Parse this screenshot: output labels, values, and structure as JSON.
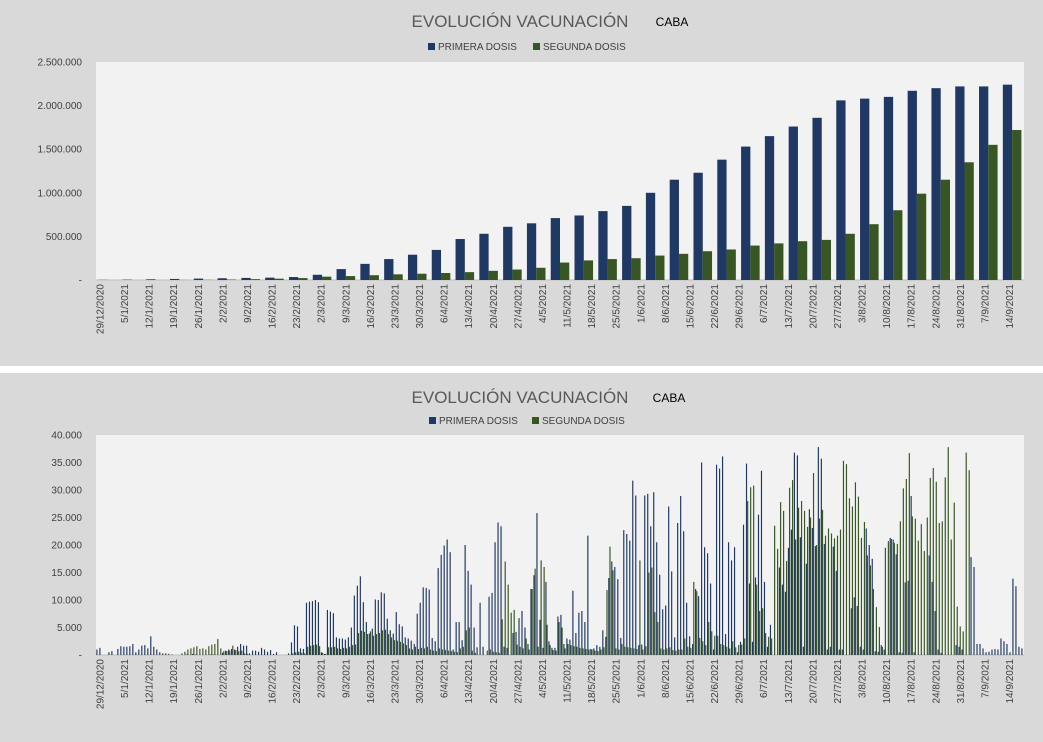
{
  "colors": {
    "first_dose": "#203864",
    "second_dose": "#375623",
    "plot_bg": "#f2f2f2",
    "panel_bg": "#d9d9d9",
    "text": "#404040"
  },
  "chart_data": [
    {
      "type": "bar",
      "title": "EVOLUCIÓN VACUNACIÓN",
      "subtitle": "CABA",
      "legend_position": "top",
      "grid": false,
      "ylim": [
        0,
        2500000
      ],
      "ytick_labels": [
        "-",
        "500.000",
        "1.000.000",
        "1.500.000",
        "2.000.000",
        "2.500.000"
      ],
      "ytick_values": [
        0,
        500000,
        1000000,
        1500000,
        2000000,
        2500000
      ],
      "x_tick_labels": [
        "29/12/2020",
        "5/1/2021",
        "12/1/2021",
        "19/1/2021",
        "26/1/2021",
        "2/2/2021",
        "9/2/2021",
        "16/2/2021",
        "23/2/2021",
        "2/3/2021",
        "9/3/2021",
        "16/3/2021",
        "23/3/2021",
        "30/3/2021",
        "6/4/2021",
        "13/4/2021",
        "20/4/2021",
        "27/4/2021",
        "4/5/2021",
        "11/5/2021",
        "18/5/2021",
        "25/5/2021",
        "1/6/2021",
        "8/6/2021",
        "15/6/2021",
        "22/6/2021",
        "29/6/2021",
        "6/7/2021",
        "13/7/2021",
        "20/7/2021",
        "27/7/2021",
        "3/8/2021",
        "10/8/2021",
        "17/8/2021",
        "24/8/2021",
        "31/8/2021",
        "7/9/2021",
        "14/9/2021"
      ],
      "series": [
        {
          "name": "PRIMERA DOSIS",
          "color": "#203864",
          "values": [
            2000,
            4000,
            8000,
            12000,
            16000,
            20000,
            24000,
            27000,
            34000,
            60000,
            125000,
            185000,
            240000,
            290000,
            345000,
            470000,
            530000,
            610000,
            650000,
            710000,
            740000,
            790000,
            850000,
            1000000,
            1150000,
            1230000,
            1380000,
            1530000,
            1650000,
            1760000,
            1860000,
            2060000,
            2080000,
            2100000,
            2170000,
            2200000,
            2220000,
            2220000,
            2240000
          ]
        },
        {
          "name": "SEGUNDA DOSIS",
          "color": "#375623",
          "values": [
            0,
            0,
            0,
            1000,
            2000,
            5000,
            10000,
            15000,
            22000,
            38000,
            45000,
            55000,
            65000,
            72000,
            80000,
            90000,
            105000,
            120000,
            140000,
            200000,
            225000,
            240000,
            250000,
            280000,
            300000,
            330000,
            350000,
            395000,
            420000,
            445000,
            460000,
            530000,
            640000,
            800000,
            990000,
            1150000,
            1350000,
            1550000,
            1720000
          ]
        }
      ]
    },
    {
      "type": "bar",
      "title": "EVOLUCIÓN VACUNACIÓN",
      "subtitle": "CABA",
      "legend_position": "top",
      "grid": false,
      "ylim": [
        0,
        40000
      ],
      "ytick_labels": [
        "-",
        "5.000",
        "10.000",
        "15.000",
        "20.000",
        "25.000",
        "30.000",
        "35.000",
        "40.000"
      ],
      "ytick_values": [
        0,
        5000,
        10000,
        15000,
        20000,
        25000,
        30000,
        35000,
        40000
      ],
      "x_tick_labels": [
        "29/12/2020",
        "5/1/2021",
        "12/1/2021",
        "19/1/2021",
        "26/1/2021",
        "2/2/2021",
        "9/2/2021",
        "16/2/2021",
        "23/2/2021",
        "2/3/2021",
        "9/3/2021",
        "16/3/2021",
        "23/3/2021",
        "30/3/2021",
        "6/4/2021",
        "13/4/2021",
        "20/4/2021",
        "27/4/2021",
        "4/5/2021",
        "11/5/2021",
        "18/5/2021",
        "25/5/2021",
        "1/6/2021",
        "8/6/2021",
        "15/6/2021",
        "22/6/2021",
        "29/6/2021",
        "6/7/2021",
        "13/7/2021",
        "20/7/2021",
        "27/7/2021",
        "3/8/2021",
        "10/8/2021",
        "17/8/2021",
        "24/8/2021",
        "31/8/2021",
        "7/9/2021",
        "14/9/2021"
      ],
      "series": [
        {
          "name": "PRIMERA DOSIS",
          "color": "#203864",
          "values": [
            1000,
            1300,
            0,
            0,
            500,
            700,
            0,
            1100,
            1600,
            1500,
            1500,
            1600,
            2000,
            500,
            1000,
            1700,
            1800,
            1200,
            3400,
            1500,
            1000,
            500,
            300,
            300,
            200,
            100,
            0,
            0,
            0,
            0,
            100,
            0,
            200,
            100,
            0,
            0,
            0,
            0,
            100,
            100,
            0,
            0,
            400,
            800,
            1000,
            1100,
            1000,
            1500,
            2000,
            1700,
            1700,
            300,
            800,
            800,
            600,
            1300,
            1000,
            600,
            900,
            200,
            500,
            0,
            0,
            0,
            300,
            2300,
            5400,
            5200,
            1200,
            1100,
            9500,
            9700,
            9800,
            10000,
            9600,
            500,
            200,
            8200,
            7900,
            7600,
            3200,
            3000,
            3000,
            2800,
            3200,
            5000,
            10800,
            12600,
            14300,
            9600,
            6000,
            3900,
            4800,
            10100,
            10000,
            11400,
            11200,
            6600,
            4500,
            3900,
            7800,
            5600,
            5200,
            3200,
            3000,
            2600,
            2000,
            7500,
            9500,
            12300,
            12200,
            11900,
            3100,
            2500,
            15800,
            18200,
            19900,
            21000,
            18700,
            1000,
            6000,
            6000,
            2700,
            20000,
            15300,
            12800,
            5000,
            1400,
            9500,
            1500,
            0,
            10600,
            11300,
            20500,
            24100,
            23400,
            1500,
            1300,
            0,
            4000,
            4200,
            6700,
            8000,
            5000,
            2000,
            12000,
            14500,
            25800,
            6400,
            1300,
            13300,
            2500,
            1300,
            1300,
            7000,
            7300,
            2000,
            3000,
            2800,
            11700,
            4000,
            7700,
            8000,
            6000,
            21700,
            1100,
            1200,
            1800,
            1500,
            4500,
            3300,
            14000,
            17000,
            16000,
            13800,
            3100,
            22700,
            22000,
            20800,
            31700,
            29000,
            1800,
            1900,
            29000,
            29300,
            23400,
            29600,
            20500,
            14600,
            8300,
            9000,
            27000,
            15200,
            3200,
            24000,
            28900,
            22500,
            9500,
            3400,
            2000,
            12000,
            10700,
            35000,
            19600,
            18500,
            13000,
            1000,
            34600,
            33900,
            36100,
            3800,
            20500,
            17200,
            19600,
            500,
            2400,
            23700,
            34800,
            13000,
            2400,
            14100,
            25500,
            33500,
            13300,
            1500,
            5500,
            0,
            0,
            15900,
            12800,
            11500,
            19500,
            22800,
            36800,
            36300,
            21400,
            1500,
            16600,
            26500,
            23100,
            19800,
            37800,
            35700,
            20200,
            1000,
            1500,
            19700,
            15300,
            1000,
            1000,
            0,
            0,
            8500,
            10500,
            8900,
            1500,
            1000,
            23000,
            20000,
            17500,
            700,
            600,
            1800,
            1000,
            0,
            21300,
            21000,
            18300,
            500,
            400,
            13200,
            13500,
            28900,
            500,
            0,
            0,
            0,
            0,
            18100,
            13300,
            8000,
            1000,
            400,
            0,
            0,
            0,
            0,
            1800,
            1500,
            1000,
            0,
            0,
            17800,
            16000,
            2000,
            2000,
            1200,
            500,
            600,
            1000,
            1100,
            1000,
            3000,
            2500,
            2000,
            500,
            13900,
            12500,
            1500,
            1200
          ]
        },
        {
          "name": "SEGUNDA DOSIS",
          "color": "#375623",
          "values": [
            0,
            0,
            0,
            0,
            0,
            0,
            0,
            0,
            0,
            0,
            0,
            0,
            0,
            0,
            0,
            0,
            0,
            0,
            0,
            0,
            0,
            0,
            0,
            0,
            0,
            0,
            0,
            0,
            300,
            600,
            1000,
            1200,
            1400,
            1600,
            1100,
            1200,
            1000,
            1600,
            1900,
            2000,
            2900,
            1200,
            700,
            700,
            800,
            1700,
            900,
            700,
            800,
            300,
            200,
            0,
            0,
            0,
            0,
            0,
            0,
            0,
            0,
            0,
            0,
            0,
            0,
            0,
            0,
            300,
            500,
            600,
            400,
            300,
            1500,
            1700,
            1800,
            1900,
            1600,
            400,
            200,
            1400,
            1400,
            1500,
            1200,
            1100,
            1300,
            1200,
            1500,
            1800,
            1900,
            4000,
            4400,
            4200,
            3800,
            4300,
            3500,
            3800,
            4000,
            4500,
            4600,
            3800,
            3200,
            2700,
            2600,
            2400,
            2100,
            1800,
            1200,
            1000,
            1500,
            1100,
            1300,
            1200,
            1500,
            1000,
            800,
            700,
            1200,
            1000,
            900,
            800,
            700,
            600,
            500,
            1200,
            1500,
            4500,
            5000,
            800,
            400,
            0,
            0,
            0,
            800,
            1000,
            600,
            500,
            400,
            6500,
            17000,
            12800,
            7700,
            8200,
            1900,
            1500,
            1200,
            3000,
            1000,
            12000,
            15700,
            1500,
            17200,
            16000,
            5500,
            1800,
            900,
            800,
            6000,
            5000,
            1200,
            2000,
            1800,
            1600,
            1500,
            1300,
            1200,
            1100,
            1000,
            1000,
            800,
            700,
            1000,
            1400,
            11800,
            19700,
            15400,
            1200,
            1000,
            2000,
            1500,
            1400,
            1300,
            1200,
            1100,
            17200,
            1000,
            1600,
            15000,
            15900,
            7800,
            6000,
            1200,
            1000,
            1200,
            1400,
            900,
            800,
            1000,
            1000,
            3000,
            1500,
            1300,
            13300,
            11600,
            3100,
            2500,
            1800,
            6000,
            4300,
            3500,
            3500,
            2000,
            1800,
            1500,
            1200,
            2500,
            1400,
            1800,
            1900,
            3000,
            28000,
            30500,
            30800,
            12800,
            8000,
            8500,
            4000,
            3300,
            3000,
            23500,
            19300,
            27800,
            26200,
            17100,
            30400,
            31800,
            21000,
            26800,
            28000,
            26200,
            23300,
            25000,
            33100,
            20000,
            24800,
            26400,
            21700,
            23000,
            22100,
            21200,
            21700,
            22800,
            35300,
            34700,
            28500,
            27000,
            31400,
            28800,
            21300,
            24200,
            18100,
            16300,
            12000,
            8700,
            5100,
            1500,
            19500,
            20700,
            21100,
            20400,
            20200,
            24300,
            30300,
            32000,
            36700,
            25200,
            24800,
            20800,
            23800,
            18900,
            25000,
            32200,
            34000,
            31500,
            24000,
            24300,
            32300,
            37800,
            21000,
            27700,
            8800,
            5200,
            4300,
            36800,
            33600
          ]
        }
      ]
    }
  ]
}
